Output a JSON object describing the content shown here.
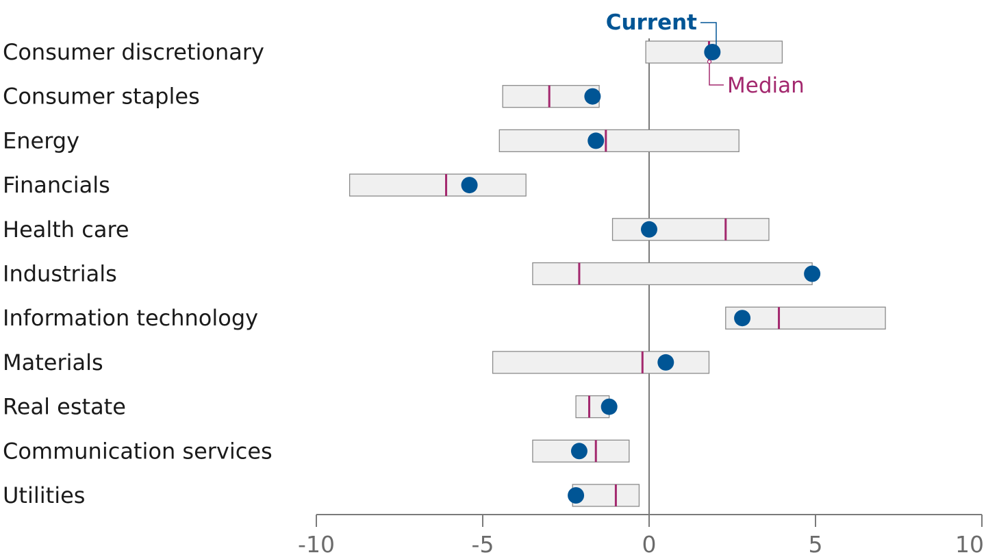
{
  "chart_data": {
    "type": "range-dot",
    "xlim": [
      -10,
      10
    ],
    "x_ticks": [
      "-10",
      "-5",
      "0",
      "5",
      "10"
    ],
    "legend": {
      "current_label": "Current",
      "median_label": "Median"
    },
    "colors": {
      "current": "#005595",
      "median": "#A3286E",
      "range_fill": "#f0f0f0",
      "range_stroke": "#8a8a8a",
      "axis": "#7a7a7a"
    },
    "categories": [
      "Consumer discretionary",
      "Consumer staples",
      "Energy",
      "Financials",
      "Health care",
      "Industrials",
      "Information technology",
      "Materials",
      "Real estate",
      "Communication services",
      "Utilities"
    ],
    "series": [
      {
        "name": "Range low",
        "values": [
          -0.1,
          -4.4,
          -4.5,
          -9.0,
          -1.1,
          -3.5,
          2.3,
          -4.7,
          -2.2,
          -3.5,
          -2.3
        ]
      },
      {
        "name": "Range high",
        "values": [
          4.0,
          -1.5,
          2.7,
          -3.7,
          3.6,
          4.9,
          7.1,
          1.8,
          -1.2,
          -0.6,
          -0.3
        ]
      },
      {
        "name": "Median",
        "values": [
          1.8,
          -3.0,
          -1.3,
          -6.1,
          2.3,
          -2.1,
          3.9,
          -0.2,
          -1.8,
          -1.6,
          -1.0
        ]
      },
      {
        "name": "Current",
        "values": [
          1.9,
          -1.7,
          -1.6,
          -5.4,
          0.0,
          4.9,
          2.8,
          0.5,
          -1.2,
          -2.1,
          -2.2
        ]
      }
    ]
  }
}
